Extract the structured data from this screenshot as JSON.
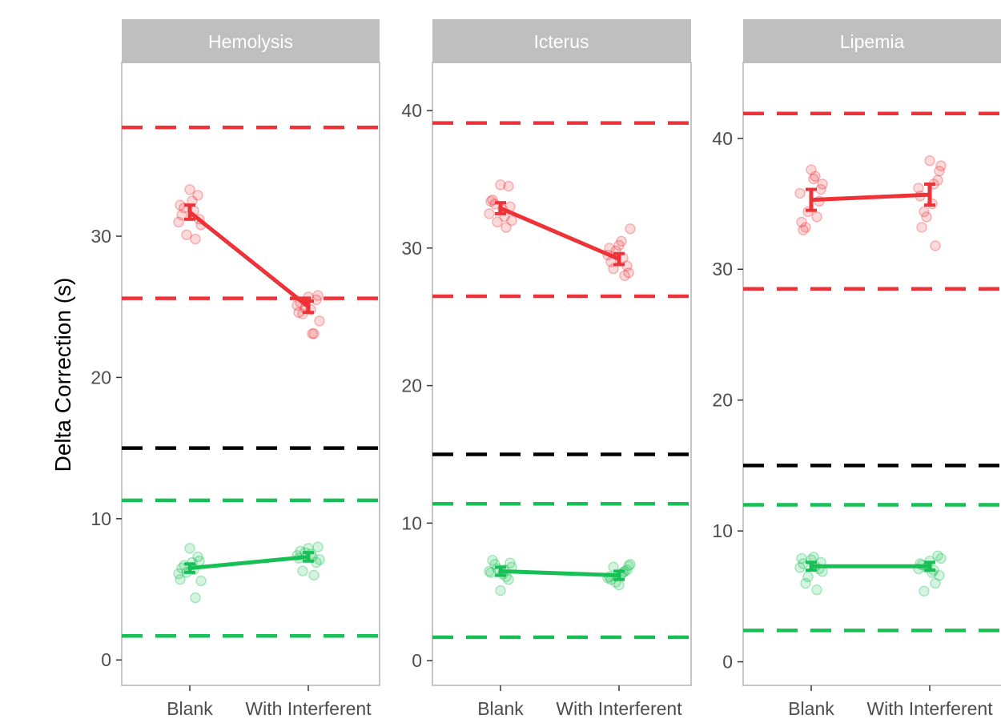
{
  "chart_data": {
    "type": "line",
    "ylabel": "Delta Correction (s)",
    "categories": [
      "Blank",
      "With Interferent"
    ],
    "colors": {
      "high": "#ee3338",
      "low": "#17c055",
      "threshold": "#000000",
      "strip_bg": "#bfbfbf",
      "panel_border": "#b3b3b3"
    },
    "panels": [
      {
        "name": "Hemolysis",
        "ylim": [
          -1.8,
          42.3
        ],
        "yticks": [
          0,
          10,
          20,
          30
        ],
        "hlines": [
          {
            "group": "high",
            "value": 37.7
          },
          {
            "group": "high",
            "value": 25.6
          },
          {
            "group": "threshold",
            "value": 15.0
          },
          {
            "group": "low",
            "value": 11.3
          },
          {
            "group": "low",
            "value": 1.7
          }
        ],
        "series": [
          {
            "group": "high",
            "means": [
              31.7,
              25.0
            ],
            "errors": [
              0.5,
              0.4
            ],
            "points": [
              [
                31.0,
                32.0,
                33.3,
                29.8,
                30.8,
                31.5,
                32.5,
                32.9,
                30.1,
                31.2,
                32.2,
                31.8
              ],
              [
                25.1,
                24.5,
                25.7,
                23.1,
                24.0,
                25.3,
                24.8,
                25.5,
                24.9,
                25.8,
                24.6,
                23.1
              ]
            ]
          },
          {
            "group": "low",
            "means": [
              6.5,
              7.3
            ],
            "errors": [
              0.3,
              0.3
            ],
            "points": [
              [
                6.1,
                6.7,
                7.9,
                4.4,
                5.6,
                6.5,
                6.9,
                7.3,
                6.2,
                7.0,
                5.7,
                6.4
              ],
              [
                7.4,
                6.3,
                7.9,
                6.0,
                7.1,
                7.7,
                7.5,
                6.9,
                7.6,
                8.0,
                7.2,
                7.3
              ]
            ]
          }
        ]
      },
      {
        "name": "Icterus",
        "ylim": [
          -1.8,
          43.5
        ],
        "yticks": [
          0,
          10,
          20,
          30,
          40
        ],
        "hlines": [
          {
            "group": "high",
            "value": 39.1
          },
          {
            "group": "high",
            "value": 26.5
          },
          {
            "group": "threshold",
            "value": 15.0
          },
          {
            "group": "low",
            "value": 11.4
          },
          {
            "group": "low",
            "value": 1.7
          }
        ],
        "series": [
          {
            "group": "high",
            "means": [
              32.9,
              29.2
            ],
            "errors": [
              0.4,
              0.4
            ],
            "points": [
              [
                32.5,
                33.2,
                34.6,
                31.5,
                32.0,
                33.5,
                32.8,
                34.5,
                31.9,
                33.0,
                33.4,
                32.3
              ],
              [
                29.5,
                28.5,
                30.2,
                28.0,
                31.4,
                29.0,
                30.5,
                28.7,
                29.8,
                28.2,
                30.0,
                29.3
              ]
            ]
          },
          {
            "group": "low",
            "means": [
              6.5,
              6.2
            ],
            "errors": [
              0.3,
              0.3
            ],
            "points": [
              [
                6.5,
                7.0,
                5.1,
                6.1,
                6.8,
                7.3,
                6.3,
                5.9,
                6.7,
                7.1,
                6.4,
                6.6
              ],
              [
                6.0,
                6.8,
                5.5,
                6.5,
                7.0,
                5.9,
                6.3,
                6.6,
                5.7,
                6.9,
                6.1,
                6.4
              ]
            ]
          }
        ]
      },
      {
        "name": "Lipemia",
        "ylim": [
          -1.8,
          45.8
        ],
        "yticks": [
          0,
          10,
          20,
          30,
          40
        ],
        "hlines": [
          {
            "group": "high",
            "value": 41.9
          },
          {
            "group": "high",
            "value": 28.5
          },
          {
            "group": "threshold",
            "value": 15.0
          },
          {
            "group": "low",
            "value": 12.0
          },
          {
            "group": "low",
            "value": 2.4
          }
        ],
        "series": [
          {
            "group": "high",
            "means": [
              35.3,
              35.7
            ],
            "errors": [
              0.8,
              0.8
            ],
            "points": [
              [
                35.8,
                33.2,
                37.6,
                34.0,
                36.5,
                33.0,
                36.9,
                35.2,
                34.4,
                36.1,
                33.6,
                37.1
              ],
              [
                36.2,
                34.4,
                38.3,
                31.8,
                37.9,
                33.2,
                35.0,
                36.8,
                34.0,
                37.5,
                35.6,
                36.5
              ]
            ]
          },
          {
            "group": "low",
            "means": [
              7.3,
              7.3
            ],
            "errors": [
              0.3,
              0.3
            ],
            "points": [
              [
                7.2,
                6.0,
                7.8,
                5.5,
                6.9,
                7.5,
                8.0,
                7.1,
                6.5,
                7.6,
                7.9,
                7.3
              ],
              [
                7.1,
                5.4,
                7.7,
                6.0,
                7.9,
                7.4,
                6.8,
                8.1,
                7.2,
                6.6,
                7.5,
                7.0
              ]
            ]
          }
        ]
      }
    ]
  }
}
